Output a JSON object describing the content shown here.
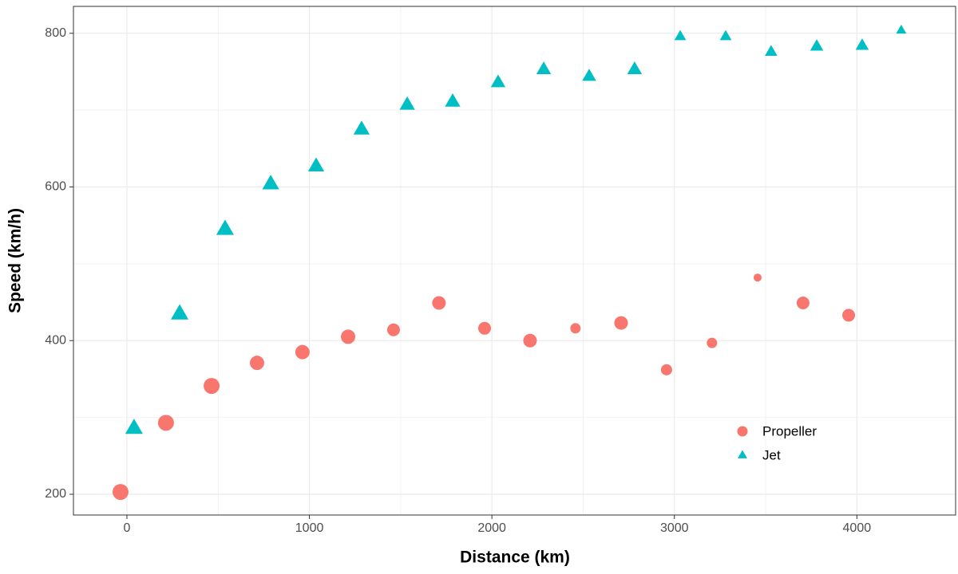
{
  "chart_data": {
    "type": "scatter",
    "x_label": "Distance (km)",
    "y_label": "Speed (km/h)",
    "xlim": [
      -293,
      4541
    ],
    "ylim": [
      173,
      835
    ],
    "xticks": [
      0,
      1000,
      2000,
      3000,
      4000
    ],
    "yticks": [
      200,
      400,
      600,
      800
    ],
    "grid": true,
    "legend": "bottom-right",
    "series": [
      {
        "name": "Propeller",
        "color": "#F8766D",
        "shape": "circle",
        "x": [
          -35,
          214,
          464,
          713,
          962,
          1212,
          1461,
          1710,
          1960,
          2209,
          2458,
          2708,
          2957,
          3206,
          3456,
          3705,
          3955
        ],
        "values": [
          203,
          293,
          341,
          371,
          385,
          405,
          414,
          449,
          416,
          400,
          416,
          423,
          362,
          397,
          482,
          449,
          433
        ],
        "sizes": [
          10,
          10,
          10,
          9,
          9,
          9,
          8,
          8.5,
          8,
          8.5,
          6.5,
          8.5,
          7,
          6.5,
          5,
          8,
          8
        ]
      },
      {
        "name": "Jet",
        "color": "#00BFC4",
        "shape": "triangle",
        "x": [
          39,
          289,
          538,
          788,
          1037,
          1286,
          1536,
          1785,
          2034,
          2284,
          2533,
          2782,
          3032,
          3281,
          3530,
          3780,
          4029,
          4243
        ],
        "values": [
          286,
          435,
          545,
          604,
          627,
          675,
          707,
          711,
          736,
          753,
          744,
          753,
          796,
          796,
          776,
          783,
          784,
          804
        ],
        "sizes": [
          12,
          12,
          12,
          11.5,
          11,
          11,
          10.5,
          10.5,
          10,
          10,
          9.5,
          10,
          8,
          8,
          8.5,
          9,
          9,
          7
        ]
      }
    ]
  }
}
